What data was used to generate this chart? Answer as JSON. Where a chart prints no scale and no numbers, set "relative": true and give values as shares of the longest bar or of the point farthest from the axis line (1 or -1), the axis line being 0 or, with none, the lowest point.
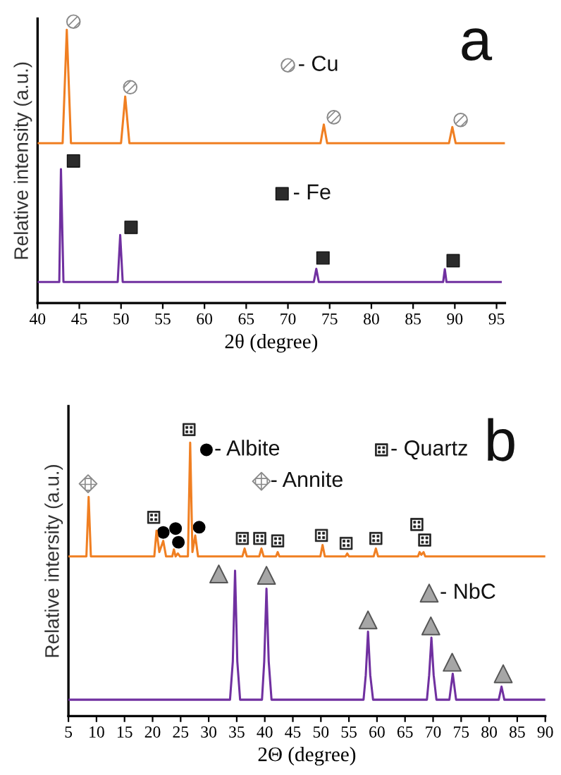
{
  "chart_data": [
    {
      "type": "line",
      "relative": true,
      "xlabel": "2θ (degree)",
      "ylabel": "Relative intensity (a.u.)",
      "xlim": [
        40,
        96
      ],
      "xticks": [
        40,
        45,
        50,
        55,
        60,
        65,
        70,
        75,
        80,
        85,
        90,
        95
      ],
      "annotations": [
        "a",
        "- Cu",
        "- Fe"
      ],
      "series": [
        {
          "color": "#f07f22",
          "x": [
            40,
            43.0,
            43.5,
            44.0,
            50.0,
            50.5,
            51.0,
            73.9,
            74.3,
            74.7,
            89.3,
            89.7,
            90.1,
            96
          ],
          "values": [
            0.585,
            0.585,
            1.0,
            0.585,
            0.585,
            0.756,
            0.585,
            0.585,
            0.653,
            0.585,
            0.585,
            0.644,
            0.585,
            0.585
          ]
        },
        {
          "color": "#7030a0",
          "x": [
            40,
            42.6,
            42.8,
            43.1,
            49.6,
            49.9,
            50.2,
            73.1,
            73.4,
            73.7,
            88.6,
            88.8,
            89.0,
            95.5
          ],
          "values": [
            0.077,
            0.077,
            0.49,
            0.077,
            0.077,
            0.249,
            0.077,
            0.077,
            0.125,
            0.077,
            0.077,
            0.124,
            0.077,
            0.077
          ]
        }
      ]
    },
    {
      "type": "line",
      "relative": true,
      "xlabel": "2Θ (degree)",
      "ylabel": "Relative intersity (a.u.)",
      "xlim": [
        5,
        90
      ],
      "xticks": [
        5,
        10,
        15,
        20,
        25,
        30,
        35,
        40,
        45,
        50,
        55,
        60,
        65,
        70,
        75,
        80,
        85,
        90
      ],
      "annotations": [
        "b",
        "- Albite",
        "- Quartz",
        "- Annite",
        "- NbC"
      ],
      "series": [
        {
          "color": "#f07f22",
          "x": [
            5,
            8.2,
            8.6,
            9.0,
            20.3,
            20.7,
            21.2,
            21.9,
            22.4,
            23.5,
            23.8,
            24.1,
            24.5,
            24.9,
            26.3,
            26.7,
            27.1,
            27.6,
            28.1,
            36.0,
            36.4,
            36.8,
            39.0,
            39.4,
            39.8,
            42.0,
            42.3,
            42.6,
            49.9,
            50.3,
            50.7,
            54.4,
            54.7,
            55.0,
            59.4,
            59.8,
            60.2,
            67.3,
            67.6,
            67.9,
            68.3,
            68.6,
            90
          ],
          "values": [
            0.584,
            0.584,
            0.802,
            0.584,
            0.584,
            0.678,
            0.6,
            0.641,
            0.584,
            0.584,
            0.61,
            0.584,
            0.595,
            0.584,
            0.584,
            1.0,
            0.6,
            0.661,
            0.584,
            0.584,
            0.613,
            0.584,
            0.584,
            0.613,
            0.584,
            0.584,
            0.6,
            0.584,
            0.584,
            0.626,
            0.584,
            0.584,
            0.595,
            0.584,
            0.584,
            0.613,
            0.584,
            0.584,
            0.6,
            0.59,
            0.6,
            0.584,
            0.584
          ]
        },
        {
          "color": "#7030a0",
          "x": [
            5,
            33.8,
            34.3,
            34.7,
            35.1,
            35.6,
            39.5,
            39.9,
            40.3,
            40.7,
            41.2,
            57.6,
            58.0,
            58.4,
            58.8,
            59.3,
            68.9,
            69.3,
            69.7,
            70.1,
            70.6,
            72.9,
            73.5,
            74.1,
            81.7,
            82.2,
            82.7,
            90
          ],
          "values": [
            0.06,
            0.06,
            0.2,
            0.532,
            0.2,
            0.06,
            0.06,
            0.2,
            0.466,
            0.2,
            0.06,
            0.06,
            0.15,
            0.309,
            0.15,
            0.06,
            0.06,
            0.15,
            0.287,
            0.15,
            0.06,
            0.06,
            0.155,
            0.06,
            0.06,
            0.108,
            0.06,
            0.06
          ]
        }
      ]
    }
  ]
}
